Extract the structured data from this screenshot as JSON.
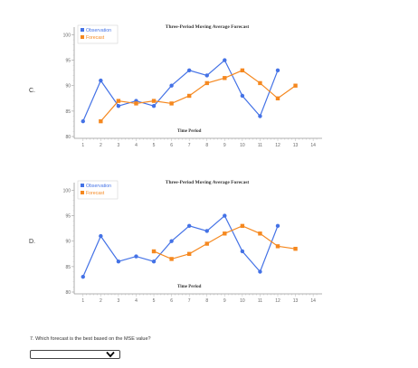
{
  "charts": [
    {
      "option": "C.",
      "chart_data": {
        "type": "line",
        "title": "Three-Period Moving Average Forecast",
        "xlabel": "Time Period",
        "ylabel": "",
        "x": [
          1,
          2,
          3,
          4,
          5,
          6,
          7,
          8,
          9,
          10,
          11,
          12,
          13,
          14
        ],
        "ylim": [
          80,
          100
        ],
        "yticks": [
          80,
          85,
          90,
          95,
          100
        ],
        "legend_position": "top-left",
        "series": [
          {
            "name": "Observation",
            "color": "#4472e6",
            "x": [
              1,
              2,
              3,
              4,
              5,
              6,
              7,
              8,
              9,
              10,
              11,
              12
            ],
            "values": [
              83,
              91,
              86,
              87,
              86,
              90,
              93,
              92,
              95,
              88,
              84,
              93
            ]
          },
          {
            "name": "Forecast",
            "color": "#f5881f",
            "x": [
              2,
              3,
              4,
              5,
              6,
              7,
              8,
              9,
              10,
              11,
              12,
              13
            ],
            "values": [
              83,
              87,
              86.5,
              87,
              86.5,
              88,
              90.5,
              91.5,
              93,
              90.5,
              87.5,
              90
            ]
          }
        ]
      }
    },
    {
      "option": "D.",
      "chart_data": {
        "type": "line",
        "title": "Three-Period Moving Average Forecast",
        "xlabel": "Time Period",
        "ylabel": "",
        "x": [
          1,
          2,
          3,
          4,
          5,
          6,
          7,
          8,
          9,
          10,
          11,
          12,
          13,
          14
        ],
        "ylim": [
          80,
          100
        ],
        "yticks": [
          80,
          85,
          90,
          95,
          100
        ],
        "legend_position": "top-left",
        "series": [
          {
            "name": "Observation",
            "color": "#4472e6",
            "x": [
              1,
              2,
              3,
              4,
              5,
              6,
              7,
              8,
              9,
              10,
              11,
              12
            ],
            "values": [
              83,
              91,
              86,
              87,
              86,
              90,
              93,
              92,
              95,
              88,
              84,
              93
            ]
          },
          {
            "name": "Forecast",
            "color": "#f5881f",
            "x": [
              5,
              6,
              7,
              8,
              9,
              10,
              11,
              12,
              13
            ],
            "values": [
              88,
              86.5,
              87.5,
              89.5,
              91.5,
              93,
              91.5,
              89,
              88.5
            ]
          }
        ]
      }
    }
  ],
  "question": "7. Which forecast is the best based on the MSE value?",
  "select": {
    "value": ""
  }
}
